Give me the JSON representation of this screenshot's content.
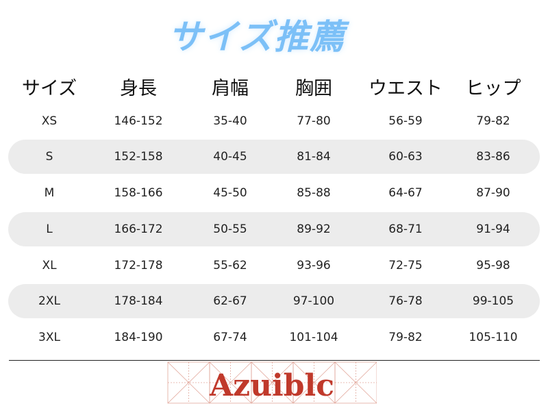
{
  "title": "サイズ推薦",
  "headers": [
    "サイズ",
    "身長",
    "肩幅",
    "胸囲",
    "ウエスト",
    "ヒップ"
  ],
  "rows": [
    [
      "XS",
      "146-152",
      "35-40",
      "77-80",
      "56-59",
      "79-82"
    ],
    [
      "S",
      "152-158",
      "40-45",
      "81-84",
      "60-63",
      "83-86"
    ],
    [
      "M",
      "158-166",
      "45-50",
      "85-88",
      "64-67",
      "87-90"
    ],
    [
      "L",
      "166-172",
      "50-55",
      "89-92",
      "68-71",
      "91-94"
    ],
    [
      "XL",
      "172-178",
      "55-62",
      "93-96",
      "72-75",
      "95-98"
    ],
    [
      "2XL",
      "178-184",
      "62-67",
      "97-100",
      "76-78",
      "99-105"
    ],
    [
      "3XL",
      "184-190",
      "67-74",
      "101-104",
      "79-82",
      "105-110"
    ]
  ],
  "brand": "Azuiblc",
  "colors": {
    "title": "#7cc0f7",
    "band": "#ececec",
    "brand": "#c0392b"
  }
}
